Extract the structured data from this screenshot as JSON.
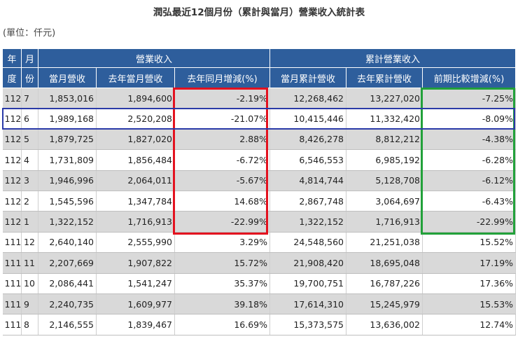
{
  "title": "潤弘最近12個月份（累計與當月）營業收入統計表",
  "unit": "(單位：仟元)",
  "header": {
    "year_top": "年",
    "year_bottom": "度",
    "month_top": "月",
    "month_bottom": "份",
    "group_revenue": "營業收入",
    "group_cumulative": "累計營業收入",
    "col_month_rev": "當月營收",
    "col_last_year_month": "去年當月營收",
    "col_yoy": "去年同月增減(%)",
    "col_month_cum": "當月累計營收",
    "col_last_year_cum": "去年累計營收",
    "col_cum_change": "前期比較增減(%)"
  },
  "rows": [
    [
      "112",
      "7",
      "1,853,016",
      "1,894,600",
      "-2.19%",
      "12,268,462",
      "13,227,020",
      "-7.25%"
    ],
    [
      "112",
      "6",
      "1,989,168",
      "2,520,208",
      "-21.07%",
      "10,415,446",
      "11,332,420",
      "-8.09%"
    ],
    [
      "112",
      "5",
      "1,879,725",
      "1,827,020",
      "2.88%",
      "8,426,278",
      "8,812,212",
      "-4.38%"
    ],
    [
      "112",
      "4",
      "1,731,809",
      "1,856,484",
      "-6.72%",
      "6,546,553",
      "6,985,192",
      "-6.28%"
    ],
    [
      "112",
      "3",
      "1,946,996",
      "2,064,011",
      "-5.67%",
      "4,814,744",
      "5,128,708",
      "-6.12%"
    ],
    [
      "112",
      "2",
      "1,545,596",
      "1,347,784",
      "14.68%",
      "2,867,748",
      "3,064,697",
      "-6.43%"
    ],
    [
      "112",
      "1",
      "1,322,152",
      "1,716,913",
      "-22.99%",
      "1,322,152",
      "1,716,913",
      "-22.99%"
    ],
    [
      "111",
      "12",
      "2,640,140",
      "2,555,990",
      "3.29%",
      "24,548,560",
      "21,251,038",
      "15.52%"
    ],
    [
      "111",
      "11",
      "2,207,669",
      "1,907,822",
      "15.72%",
      "21,908,420",
      "18,695,048",
      "17.19%"
    ],
    [
      "111",
      "10",
      "2,086,441",
      "1,541,247",
      "35.37%",
      "19,700,751",
      "16,787,226",
      "17.36%"
    ],
    [
      "111",
      "9",
      "2,240,735",
      "1,609,977",
      "39.18%",
      "17,614,310",
      "15,245,979",
      "15.53%"
    ],
    [
      "111",
      "8",
      "2,146,555",
      "1,839,467",
      "16.69%",
      "15,373,575",
      "13,636,002",
      "12.74%"
    ]
  ],
  "colors": {
    "header_bg": "#2e5e9c",
    "stripe": "#d9d9d9",
    "highlight_red": "#e3121f",
    "highlight_green": "#22a13a",
    "highlight_blue": "#2a3aa8"
  }
}
